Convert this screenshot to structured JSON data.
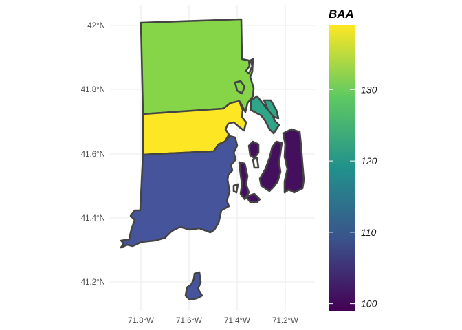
{
  "map": {
    "lat_labels": [
      "41.2°N",
      "41.4°N",
      "41.6°N",
      "41.8°N",
      "42°N"
    ],
    "lon_labels": [
      "71.8°W",
      "71.6°W",
      "71.4°W",
      "71.2°W"
    ]
  },
  "counties": [
    {
      "value": 130,
      "color": "#86d549"
    },
    {
      "value": 138,
      "color": "#fde725"
    },
    {
      "value": 107,
      "color": "#46559b"
    },
    {
      "value": 122,
      "color": "#2fa688"
    },
    {
      "value": 99,
      "color": "#440f5c"
    }
  ],
  "legend": {
    "title": "BAA",
    "min": 99,
    "max": 139,
    "labels": [
      "100",
      "110",
      "120",
      "130"
    ],
    "colors": [
      "#440154",
      "#3b528b",
      "#21918c",
      "#5ec962",
      "#fde725"
    ]
  }
}
